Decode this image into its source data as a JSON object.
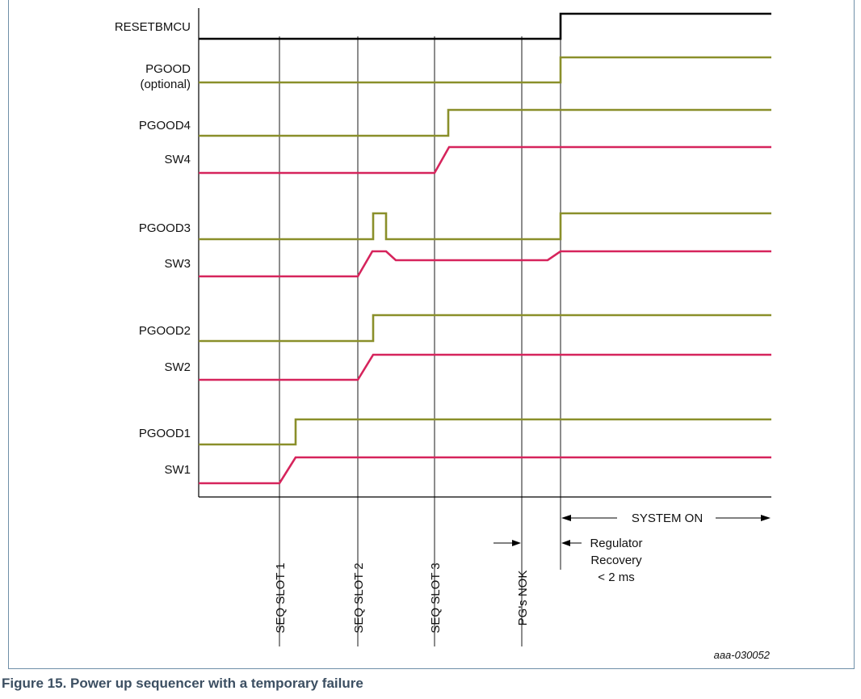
{
  "signals": [
    {
      "id": "RESETBMCU",
      "label": "RESETBMCU",
      "color": "#000000"
    },
    {
      "id": "PGOOD",
      "label": "PGOOD",
      "label2": "(optional)",
      "color": "#8a8f2a"
    },
    {
      "id": "PGOOD4",
      "label": "PGOOD4",
      "color": "#8a8f2a"
    },
    {
      "id": "SW4",
      "label": "SW4",
      "color": "#d6245c"
    },
    {
      "id": "PGOOD3",
      "label": "PGOOD3",
      "color": "#8a8f2a"
    },
    {
      "id": "SW3",
      "label": "SW3",
      "color": "#d6245c"
    },
    {
      "id": "PGOOD2",
      "label": "PGOOD2",
      "color": "#8a8f2a"
    },
    {
      "id": "SW2",
      "label": "SW2",
      "color": "#d6245c"
    },
    {
      "id": "PGOOD1",
      "label": "PGOOD1",
      "color": "#8a8f2a"
    },
    {
      "id": "SW1",
      "label": "SW1",
      "color": "#d6245c"
    }
  ],
  "markers": [
    "SEQ SLOT 1",
    "SEQ SLOT 2",
    "SEQ SLOT 3",
    "PG's NOK"
  ],
  "annotations": {
    "system_on": "SYSTEM ON",
    "recovery_line1": "Regulator",
    "recovery_line2": "Recovery",
    "recovery_line3": "< 2 ms"
  },
  "reference_id": "aaa-030052",
  "caption": "Figure 15.  Power up sequencer with a temporary failure",
  "colors": {
    "reset": "#000000",
    "pgood": "#8a8f2a",
    "sw": "#d6245c"
  }
}
